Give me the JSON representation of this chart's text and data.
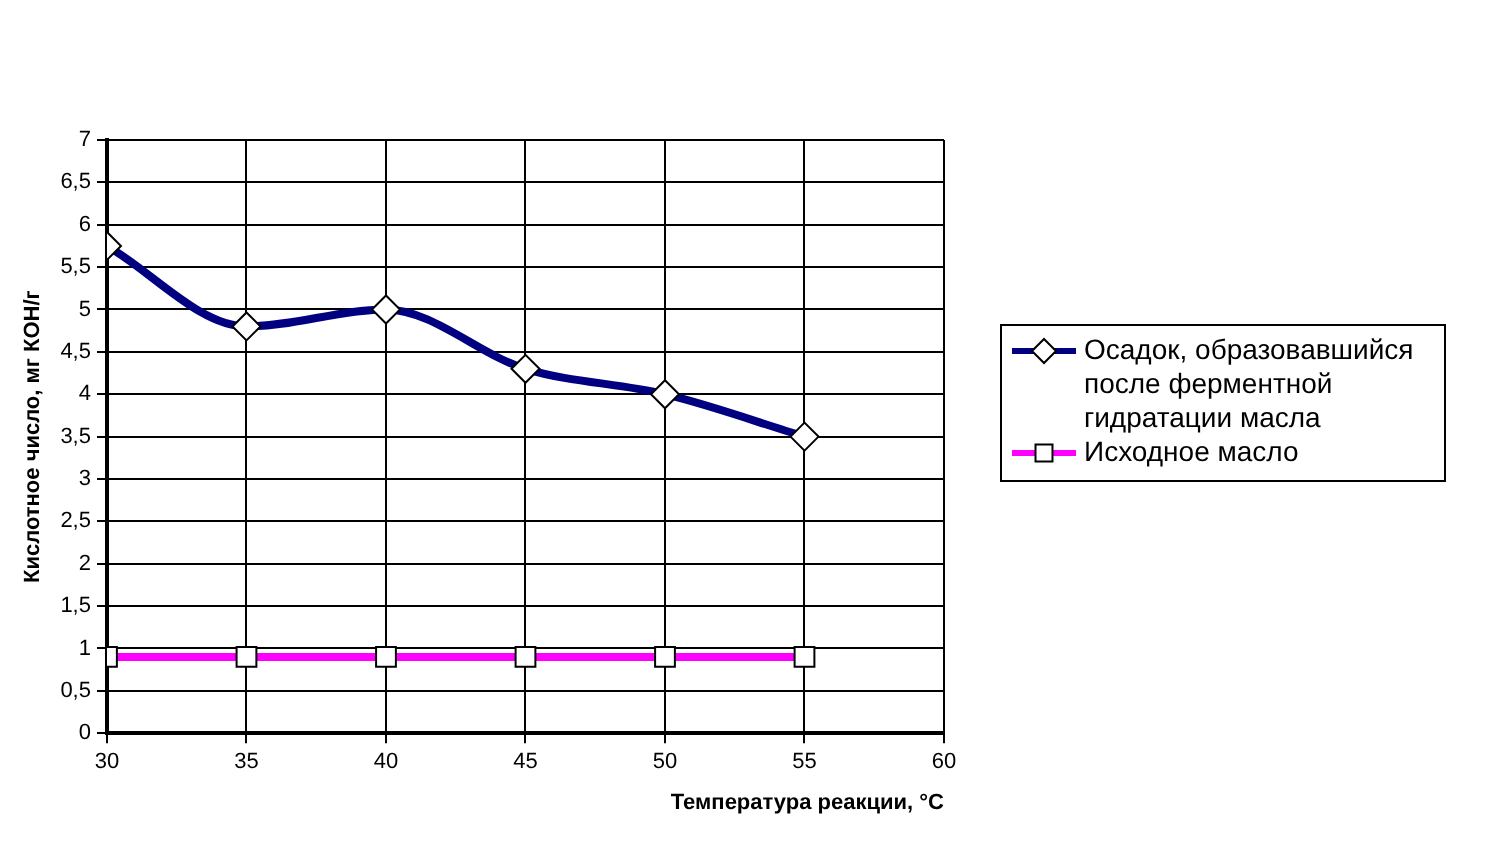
{
  "chart_data": {
    "type": "line",
    "xlabel": "Температура реакции, °C",
    "ylabel": "Кислотное число, мг КОН/г",
    "x": [
      30,
      35,
      40,
      45,
      50,
      55
    ],
    "series": [
      {
        "name": "Осадок, образовавшийся после ферментной гидратации масла",
        "color": "#000080",
        "marker": "diamond",
        "values": [
          5.75,
          4.8,
          5.0,
          4.3,
          4.0,
          3.5
        ]
      },
      {
        "name": "Исходное масло",
        "color": "#ff00ff",
        "marker": "square",
        "values": [
          0.9,
          0.9,
          0.9,
          0.9,
          0.9,
          0.9
        ]
      }
    ],
    "xlim": [
      30,
      60
    ],
    "xticks": [
      30,
      35,
      40,
      45,
      50,
      55,
      60
    ],
    "ylim": [
      0,
      7
    ],
    "yticks": [
      0,
      {
        "value": 0.5,
        "label": "0,5"
      },
      1,
      {
        "value": 1.5,
        "label": "1,5"
      },
      2,
      {
        "value": 2.5,
        "label": "2,5"
      },
      3,
      {
        "value": 3.5,
        "label": "3,5"
      },
      4,
      {
        "value": 4.5,
        "label": "4,5"
      },
      5,
      {
        "value": 5.5,
        "label": "5,5"
      },
      6,
      {
        "value": 6.5,
        "label": "6,5"
      },
      7
    ],
    "grid": true,
    "legend": "right",
    "line_style": "solid"
  }
}
